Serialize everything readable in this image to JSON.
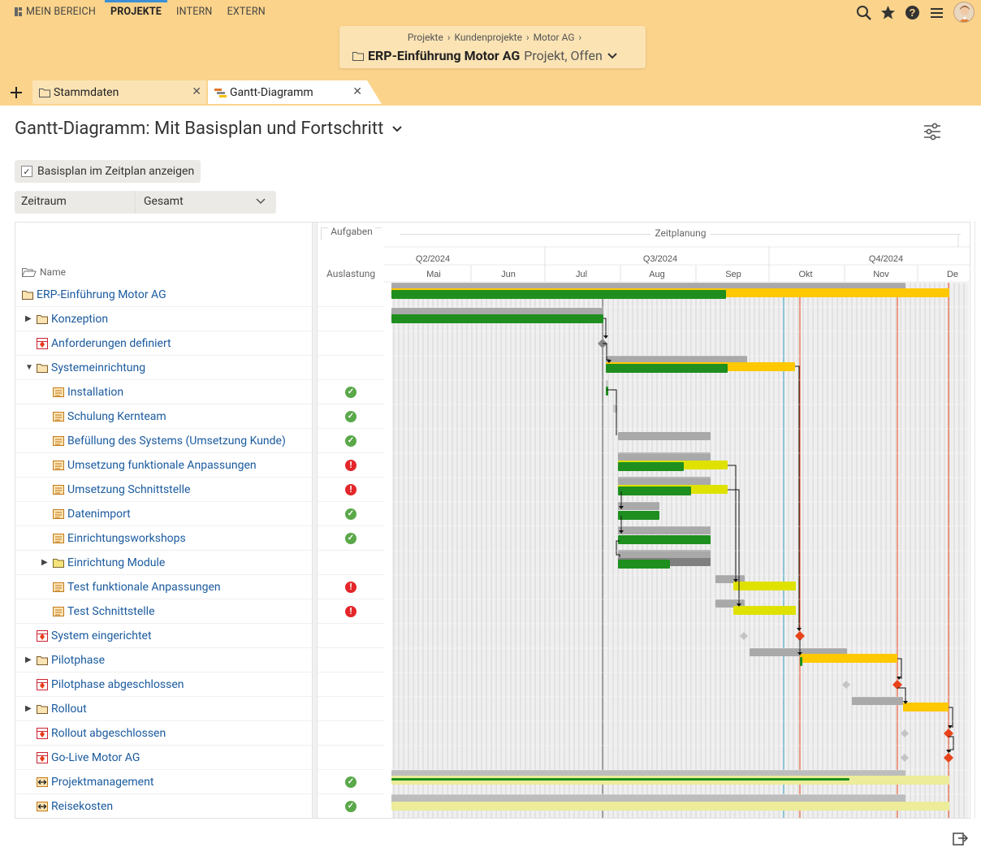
{
  "nav": {
    "items": [
      {
        "label": "MEIN BEREICH",
        "active": false
      },
      {
        "label": "PROJEKTE",
        "active": true
      },
      {
        "label": "INTERN",
        "active": false
      },
      {
        "label": "EXTERN",
        "active": false
      }
    ]
  },
  "breadcrumb": [
    "Projekte",
    "Kundenprojekte",
    "Motor AG"
  ],
  "project": {
    "name": "ERP-Einführung Motor AG",
    "status": "Projekt, Offen"
  },
  "tabs": [
    {
      "label": "Stammdaten",
      "active": false
    },
    {
      "label": "Gantt-Diagramm",
      "active": true
    }
  ],
  "page_title": "Gantt-Diagramm: Mit Basisplan und Fortschritt",
  "checkbox": {
    "label": "Basisplan im Zeitplan anzeigen",
    "checked": true
  },
  "zeitraum": {
    "label": "Zeitraum",
    "value": "Gesamt"
  },
  "columns": {
    "name": "Name",
    "aufgaben": "Aufgaben",
    "auslastung": "Auslastung",
    "zeitplanung": "Zeitplanung"
  },
  "timeline": {
    "quarters": [
      "Q2/2024",
      "Q3/2024",
      "Q4/2024"
    ],
    "months": [
      "Mai",
      "Jun",
      "Jul",
      "Aug",
      "Sep",
      "Okt",
      "Nov",
      "De"
    ]
  },
  "rows": [
    {
      "label": "ERP-Einführung Motor AG",
      "type": "project",
      "level": 0,
      "expand": "",
      "status": ""
    },
    {
      "label": "Konzeption",
      "type": "folder",
      "level": 1,
      "expand": "collapsed",
      "status": ""
    },
    {
      "label": "Anforderungen definiert",
      "type": "milestone",
      "level": 1,
      "expand": "",
      "status": ""
    },
    {
      "label": "Systemeinrichtung",
      "type": "folder",
      "level": 1,
      "expand": "expanded",
      "status": ""
    },
    {
      "label": "Installation",
      "type": "task",
      "level": 2,
      "expand": "",
      "status": "ok"
    },
    {
      "label": "Schulung Kernteam",
      "type": "task",
      "level": 2,
      "expand": "",
      "status": "ok"
    },
    {
      "label": "Befüllung des Systems (Umsetzung Kunde)",
      "type": "task",
      "level": 2,
      "expand": "",
      "status": "ok"
    },
    {
      "label": "Umsetzung funktionale Anpassungen",
      "type": "task",
      "level": 2,
      "expand": "",
      "status": "error"
    },
    {
      "label": "Umsetzung Schnittstelle",
      "type": "task",
      "level": 2,
      "expand": "",
      "status": "error"
    },
    {
      "label": "Datenimport",
      "type": "task",
      "level": 2,
      "expand": "",
      "status": "ok"
    },
    {
      "label": "Einrichtungsworkshops",
      "type": "task",
      "level": 2,
      "expand": "",
      "status": "ok"
    },
    {
      "label": "Einrichtung Module",
      "type": "folder-yellow",
      "level": 2,
      "expand": "collapsed",
      "status": ""
    },
    {
      "label": "Test funktionale Anpassungen",
      "type": "task",
      "level": 2,
      "expand": "",
      "status": "error"
    },
    {
      "label": "Test Schnittstelle",
      "type": "task",
      "level": 2,
      "expand": "",
      "status": "error"
    },
    {
      "label": "System eingerichtet",
      "type": "milestone",
      "level": 1,
      "expand": "",
      "status": ""
    },
    {
      "label": "Pilotphase",
      "type": "folder",
      "level": 1,
      "expand": "collapsed",
      "status": ""
    },
    {
      "label": "Pilotphase abgeschlossen",
      "type": "milestone",
      "level": 1,
      "expand": "",
      "status": ""
    },
    {
      "label": "Rollout",
      "type": "folder",
      "level": 1,
      "expand": "collapsed",
      "status": ""
    },
    {
      "label": "Rollout abgeschlossen",
      "type": "milestone",
      "level": 1,
      "expand": "",
      "status": ""
    },
    {
      "label": "Go-Live Motor AG",
      "type": "milestone",
      "level": 1,
      "expand": "",
      "status": ""
    },
    {
      "label": "Projektmanagement",
      "type": "recurring",
      "level": 1,
      "expand": "",
      "status": "ok"
    },
    {
      "label": "Reisekosten",
      "type": "recurring",
      "level": 1,
      "expand": "",
      "status": "ok"
    }
  ],
  "colors": {
    "header_bg": "#fbd38b",
    "card_bg": "#fbe3b4",
    "link": "#1a5a9e",
    "progress_done": "#1e8f1e",
    "progress_planned": "#ffc800",
    "baseline": "#a6a6a6",
    "milestone": "#e83b1a",
    "ok": "#5aa84a",
    "error": "#e4262b",
    "today_line": "#37a6c7"
  }
}
